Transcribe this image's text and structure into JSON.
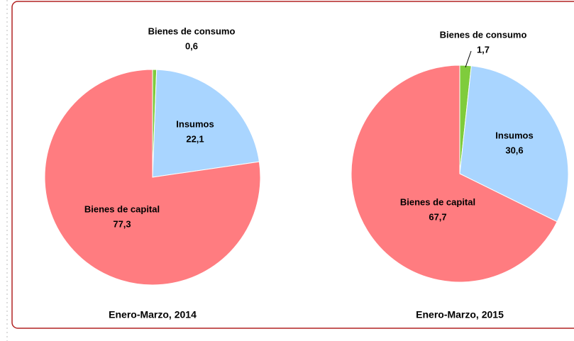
{
  "chart_data": [
    {
      "type": "pie",
      "title": "Enero-Marzo, 2014",
      "categories": [
        "Bienes de consumo",
        "Insumos",
        "Bienes de capital"
      ],
      "values": [
        0.6,
        22.1,
        77.3
      ],
      "value_labels": [
        "0,6",
        "22,1",
        "77,3"
      ],
      "colors": [
        "#7fcc3c",
        "#a9d5ff",
        "#ff7c80"
      ]
    },
    {
      "type": "pie",
      "title": "Enero-Marzo, 2015",
      "categories": [
        "Bienes de consumo",
        "Insumos",
        "Bienes de capital"
      ],
      "values": [
        1.7,
        30.6,
        67.7
      ],
      "value_labels": [
        "1,7",
        "30,6",
        "67,7"
      ],
      "colors": [
        "#7fcc3c",
        "#a9d5ff",
        "#ff7c80"
      ]
    }
  ]
}
